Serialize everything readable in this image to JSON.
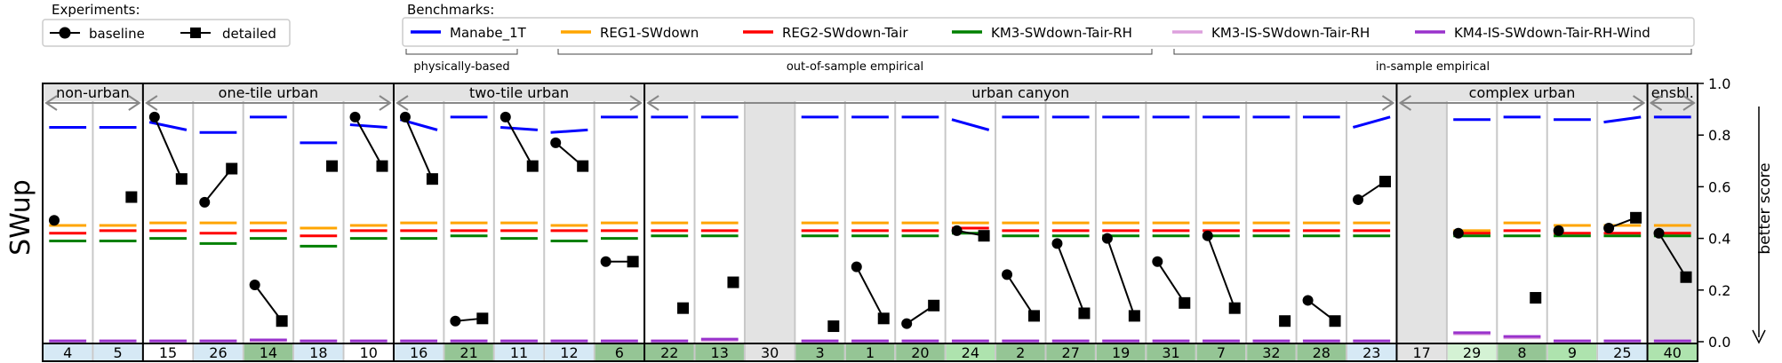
{
  "legends": {
    "experiments": {
      "title": "Experiments:",
      "items": [
        {
          "label": "baseline",
          "marker": "circle"
        },
        {
          "label": "detailed",
          "marker": "square"
        }
      ]
    },
    "benchmarks": {
      "title": "Benchmarks:",
      "items": [
        {
          "label": "Manabe_1T",
          "color": "#0000ff"
        },
        {
          "label": "REG1-SWdown",
          "color": "#ffa500"
        },
        {
          "label": "REG2-SWdown-Tair",
          "color": "#ff0000"
        },
        {
          "label": "KM3-SWdown-Tair-RH",
          "color": "#008000"
        },
        {
          "label": "KM3-IS-SWdown-Tair-RH",
          "color": "#dda0dd"
        },
        {
          "label": "KM4-IS-SWdown-Tair-RH-Wind",
          "color": "#9932cc"
        }
      ],
      "groups": [
        {
          "label": "physically-based",
          "from": 0,
          "to": 0
        },
        {
          "label": "out-of-sample empirical",
          "from": 1,
          "to": 3
        },
        {
          "label": "in-sample empirical",
          "from": 4,
          "to": 5
        }
      ]
    }
  },
  "annotations": {
    "better_score": "better score"
  },
  "chart_data": {
    "type": "scatter",
    "ylabel": "SWup",
    "ylim": [
      -0.08,
      1.0
    ],
    "yticks": [
      "0.0",
      "0.2",
      "0.4",
      "0.6",
      "0.8",
      "1.0"
    ],
    "categories": [
      "4",
      "5",
      "15",
      "26",
      "14",
      "18",
      "10",
      "16",
      "21",
      "11",
      "12",
      "6",
      "22",
      "13",
      "30",
      "3",
      "1",
      "20",
      "24",
      "2",
      "27",
      "19",
      "31",
      "7",
      "32",
      "28",
      "23",
      "17",
      "29",
      "8",
      "9",
      "25",
      "40"
    ],
    "groups": [
      {
        "label": "non-urban",
        "from": 0,
        "to": 1
      },
      {
        "label": "one-tile urban",
        "from": 2,
        "to": 6
      },
      {
        "label": "two-tile urban",
        "from": 7,
        "to": 11
      },
      {
        "label": "urban canyon",
        "from": 12,
        "to": 26
      },
      {
        "label": "complex urban",
        "from": 27,
        "to": 31
      },
      {
        "label": "ensbl.",
        "from": 32,
        "to": 32
      }
    ],
    "empty_columns": [
      14,
      27,
      32
    ],
    "bottom_strip_shade": [
      "light",
      "light",
      "white",
      "light",
      "dark",
      "light",
      "white",
      "light",
      "dark",
      "light",
      "light",
      "dark",
      "dark",
      "dark",
      "grey",
      "dark",
      "dark",
      "dark",
      "mid",
      "dark",
      "dark",
      "dark",
      "dark",
      "dark",
      "dark",
      "dark",
      "light",
      "grey",
      "pale",
      "dark",
      "mid",
      "light",
      "mid"
    ],
    "series": [
      {
        "name": "baseline",
        "marker": "circle",
        "values": [
          0.47,
          null,
          0.87,
          0.54,
          0.22,
          null,
          0.87,
          0.87,
          0.08,
          0.87,
          0.77,
          0.31,
          null,
          null,
          null,
          null,
          0.29,
          0.07,
          0.43,
          0.26,
          0.38,
          0.4,
          0.31,
          0.41,
          null,
          0.16,
          0.55,
          null,
          0.42,
          null,
          0.43,
          0.44,
          0.42
        ]
      },
      {
        "name": "detailed",
        "marker": "square",
        "values": [
          null,
          0.56,
          0.63,
          0.67,
          0.08,
          0.68,
          0.68,
          0.63,
          0.09,
          0.68,
          0.68,
          0.31,
          0.13,
          0.23,
          null,
          0.06,
          0.09,
          0.14,
          0.41,
          0.1,
          0.11,
          0.1,
          0.15,
          0.13,
          0.08,
          0.08,
          0.62,
          null,
          null,
          0.17,
          null,
          0.48,
          0.25
        ]
      },
      {
        "name": "Manabe_1T",
        "start": [
          0.83,
          0.83,
          0.85,
          0.81,
          0.87,
          0.77,
          0.84,
          0.86,
          0.87,
          0.83,
          0.81,
          0.87,
          0.87,
          0.87,
          null,
          0.87,
          0.87,
          0.87,
          0.86,
          0.87,
          0.87,
          0.87,
          0.87,
          0.87,
          0.87,
          0.87,
          0.83,
          null,
          0.86,
          0.87,
          0.86,
          0.85,
          0.87
        ],
        "end": [
          0.83,
          0.83,
          0.82,
          0.81,
          0.87,
          0.77,
          0.83,
          0.82,
          0.87,
          0.82,
          0.82,
          0.87,
          0.87,
          0.87,
          null,
          0.87,
          0.87,
          0.87,
          0.82,
          0.87,
          0.87,
          0.87,
          0.87,
          0.87,
          0.87,
          0.87,
          0.87,
          null,
          0.86,
          0.87,
          0.86,
          0.87,
          0.87
        ]
      },
      {
        "name": "REG1-SWdown",
        "values": [
          0.45,
          0.45,
          0.46,
          0.46,
          0.46,
          0.44,
          0.45,
          0.46,
          0.46,
          0.46,
          0.45,
          0.46,
          0.46,
          0.46,
          null,
          0.46,
          0.46,
          0.46,
          0.46,
          0.46,
          0.46,
          0.46,
          0.46,
          0.46,
          0.46,
          0.46,
          0.46,
          null,
          0.43,
          0.46,
          0.45,
          0.45,
          0.45
        ]
      },
      {
        "name": "REG2-SWdown-Tair",
        "values": [
          0.42,
          0.43,
          0.43,
          0.42,
          0.43,
          0.41,
          0.43,
          0.43,
          0.43,
          0.43,
          0.43,
          0.43,
          0.43,
          0.43,
          null,
          0.43,
          0.43,
          0.43,
          0.44,
          0.43,
          0.43,
          0.43,
          0.43,
          0.43,
          0.43,
          0.43,
          0.43,
          null,
          0.42,
          0.43,
          0.42,
          0.42,
          0.42
        ]
      },
      {
        "name": "KM3-SWdown-Tair-RH",
        "values": [
          0.39,
          0.39,
          0.4,
          0.38,
          0.4,
          0.37,
          0.4,
          0.4,
          0.41,
          0.4,
          0.39,
          0.4,
          0.41,
          0.41,
          null,
          0.41,
          0.41,
          0.41,
          0.42,
          0.41,
          0.41,
          0.41,
          0.41,
          0.41,
          0.41,
          0.41,
          0.41,
          null,
          0.41,
          0.41,
          0.41,
          0.41,
          0.41
        ]
      },
      {
        "name": "KM3-IS-SWdown-Tair-RH",
        "values": [
          0.003,
          0.003,
          0.003,
          0.003,
          0.004,
          0.003,
          0.003,
          0.003,
          0.003,
          0.003,
          0.003,
          0.003,
          0.003,
          0.005,
          null,
          0.003,
          0.003,
          0.003,
          0.003,
          0.003,
          0.003,
          0.003,
          0.003,
          0.003,
          0.003,
          0.003,
          0.003,
          null,
          0.03,
          0.015,
          0.003,
          0.003,
          0.003
        ]
      },
      {
        "name": "KM4-IS-SWdown-Tair-RH-Wind",
        "values": [
          0.003,
          0.003,
          0.003,
          0.003,
          0.007,
          0.003,
          0.003,
          0.003,
          0.003,
          0.003,
          0.003,
          0.003,
          0.003,
          0.01,
          null,
          0.003,
          0.003,
          0.003,
          0.003,
          0.003,
          0.003,
          0.003,
          0.003,
          0.003,
          0.003,
          0.003,
          0.003,
          null,
          0.035,
          0.02,
          0.003,
          0.003,
          0.003
        ]
      }
    ]
  }
}
